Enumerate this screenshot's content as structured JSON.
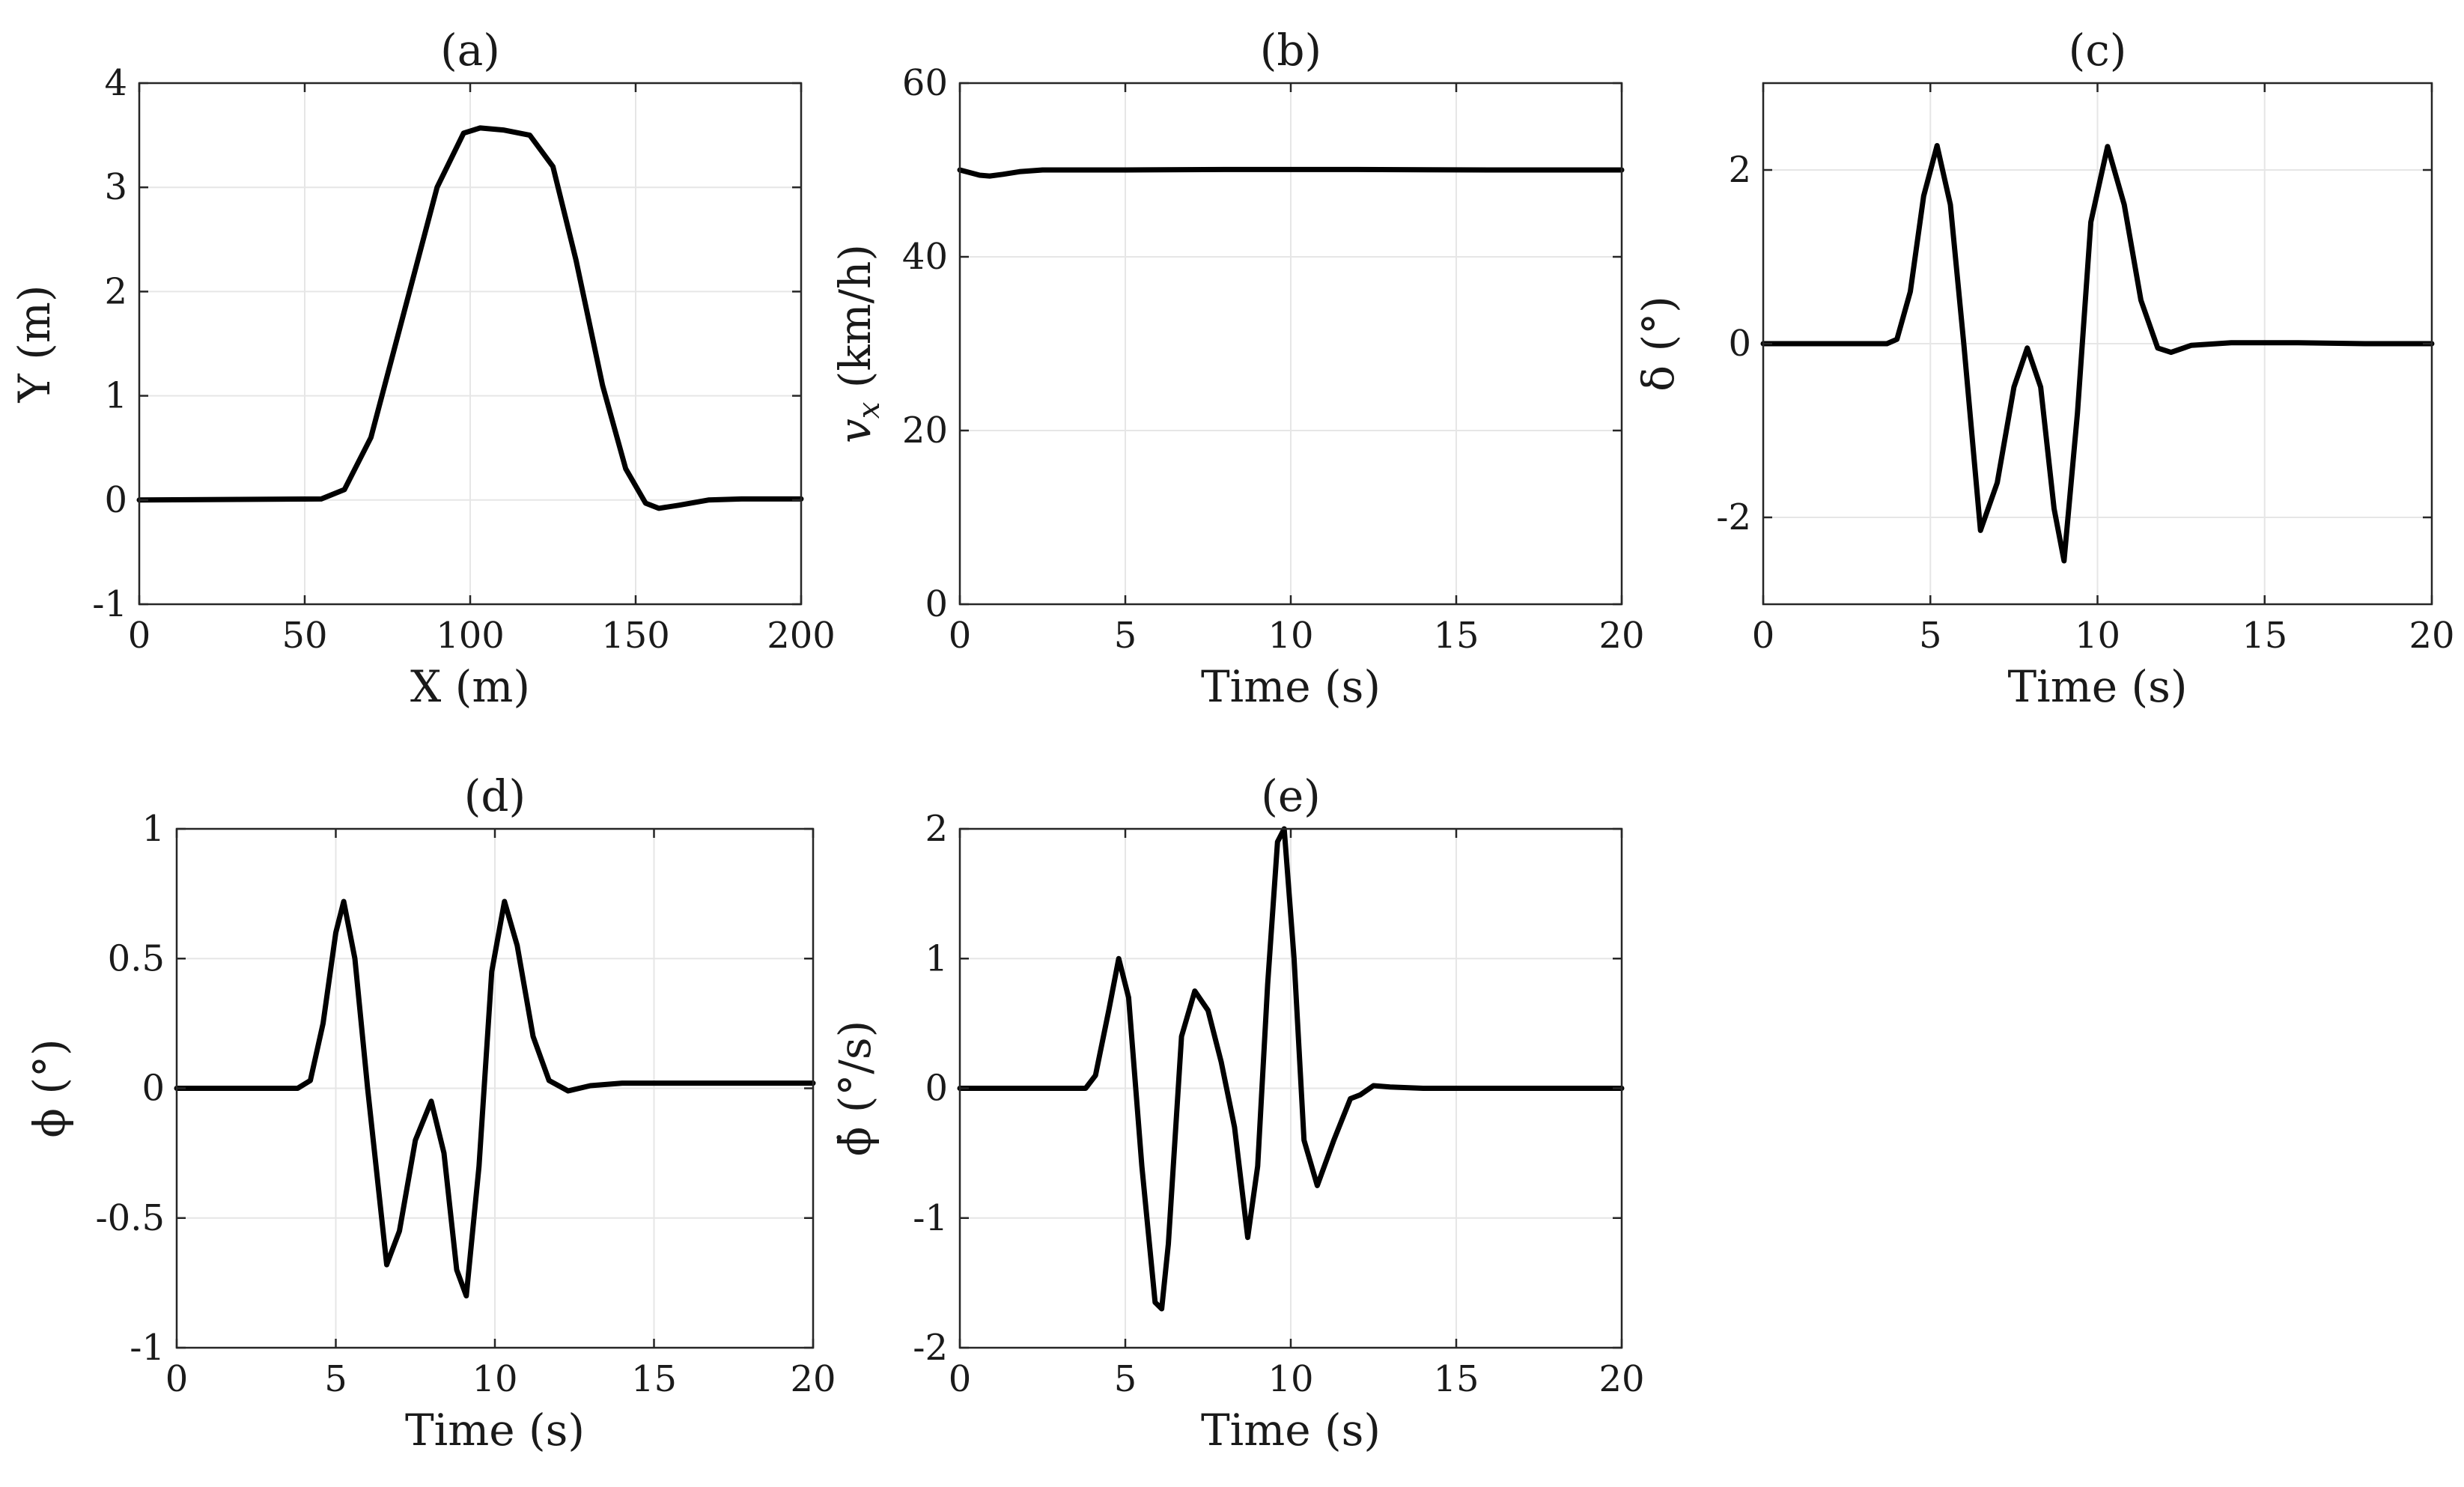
{
  "figure": {
    "background": "#ffffff",
    "line_color": "#000000",
    "grid_color": "#e6e6e6"
  },
  "chart_data": [
    {
      "type": "line",
      "title": "(a)",
      "xlabel": "X (m)",
      "ylabel": "Y (m)",
      "xlim": [
        0,
        200
      ],
      "ylim": [
        -1,
        4
      ],
      "xticks": [
        0,
        50,
        100,
        150,
        200
      ],
      "yticks": [
        -1,
        0,
        1,
        2,
        3,
        4
      ],
      "xtick_labels": [
        "0",
        "50",
        "100",
        "150",
        "200"
      ],
      "ytick_labels": [
        "-1",
        "0",
        "1",
        "2",
        "3",
        "4"
      ],
      "grid": true,
      "series": [
        {
          "name": "Y",
          "x": [
            0,
            55,
            62,
            70,
            80,
            90,
            98,
            103,
            110,
            118,
            125,
            132,
            140,
            147,
            153,
            157,
            163,
            172,
            182,
            200
          ],
          "y": [
            0,
            0.01,
            0.1,
            0.6,
            1.8,
            3.0,
            3.52,
            3.57,
            3.55,
            3.5,
            3.2,
            2.3,
            1.1,
            0.3,
            -0.03,
            -0.08,
            -0.05,
            0.0,
            0.01,
            0.01
          ]
        }
      ]
    },
    {
      "type": "line",
      "title": "(b)",
      "xlabel": "Time (s)",
      "ylabel": "v_x (km/h)",
      "ylabel_main": "v",
      "ylabel_sub": "x",
      "ylabel_unit": " (km/h)",
      "xlim": [
        0,
        20
      ],
      "ylim": [
        0,
        60
      ],
      "xticks": [
        0,
        5,
        10,
        15,
        20
      ],
      "yticks": [
        0,
        20,
        40,
        60
      ],
      "xtick_labels": [
        "0",
        "5",
        "10",
        "15",
        "20"
      ],
      "ytick_labels": [
        "0",
        "20",
        "40",
        "60"
      ],
      "grid": true,
      "series": [
        {
          "name": "v_x",
          "x": [
            0,
            0.3,
            0.6,
            0.9,
            1.3,
            1.8,
            2.5,
            3.5,
            5,
            8,
            12,
            16,
            20
          ],
          "y": [
            50,
            49.7,
            49.4,
            49.3,
            49.5,
            49.8,
            50,
            50,
            50,
            50.05,
            50.05,
            50,
            50
          ]
        }
      ]
    },
    {
      "type": "line",
      "title": "(c)",
      "xlabel": "Time (s)",
      "ylabel": "δ (°)",
      "xlim": [
        0,
        20
      ],
      "ylim": [
        -3,
        3
      ],
      "xticks": [
        0,
        5,
        10,
        15,
        20
      ],
      "yticks": [
        -2,
        0,
        2
      ],
      "xtick_labels": [
        "0",
        "5",
        "10",
        "15",
        "20"
      ],
      "ytick_labels": [
        "-2",
        "0",
        "2"
      ],
      "grid": true,
      "series": [
        {
          "name": "δ",
          "x": [
            0,
            3.7,
            4.0,
            4.4,
            4.8,
            5.2,
            5.6,
            6.0,
            6.5,
            7.0,
            7.5,
            7.9,
            8.3,
            8.7,
            9.0,
            9.4,
            9.8,
            10.3,
            10.8,
            11.3,
            11.8,
            12.2,
            12.8,
            14,
            16,
            18,
            20
          ],
          "y": [
            0,
            0,
            0.05,
            0.6,
            1.7,
            2.28,
            1.6,
            0.0,
            -2.15,
            -1.6,
            -0.5,
            -0.05,
            -0.5,
            -1.9,
            -2.5,
            -0.8,
            1.4,
            2.27,
            1.6,
            0.5,
            -0.05,
            -0.1,
            -0.02,
            0.01,
            0.01,
            0,
            0
          ]
        }
      ]
    },
    {
      "type": "line",
      "title": "(d)",
      "xlabel": "Time (s)",
      "ylabel": "ϕ (°)",
      "xlim": [
        0,
        20
      ],
      "ylim": [
        -1,
        1
      ],
      "xticks": [
        0,
        5,
        10,
        15,
        20
      ],
      "yticks": [
        -1,
        -0.5,
        0,
        0.5,
        1
      ],
      "xtick_labels": [
        "0",
        "5",
        "10",
        "15",
        "20"
      ],
      "ytick_labels": [
        "-1",
        "-0.5",
        "0",
        "0.5",
        "1"
      ],
      "grid": true,
      "series": [
        {
          "name": "ϕ",
          "x": [
            0,
            3.8,
            4.2,
            4.6,
            5.0,
            5.25,
            5.6,
            6.0,
            6.6,
            7.0,
            7.5,
            8.0,
            8.4,
            8.8,
            9.1,
            9.5,
            9.9,
            10.3,
            10.7,
            11.2,
            11.7,
            12.3,
            13,
            14,
            16,
            18,
            20
          ],
          "y": [
            0,
            0,
            0.03,
            0.25,
            0.6,
            0.72,
            0.5,
            0.0,
            -0.68,
            -0.55,
            -0.2,
            -0.05,
            -0.25,
            -0.7,
            -0.8,
            -0.3,
            0.45,
            0.72,
            0.55,
            0.2,
            0.03,
            -0.01,
            0.01,
            0.02,
            0.02,
            0.02,
            0.02
          ]
        }
      ]
    },
    {
      "type": "line",
      "title": "(e)",
      "xlabel": "Time (s)",
      "ylabel": "ϕ̇ (°/s)",
      "xlim": [
        0,
        20
      ],
      "ylim": [
        -2,
        2
      ],
      "xticks": [
        0,
        5,
        10,
        15,
        20
      ],
      "yticks": [
        -2,
        -1,
        0,
        1,
        2
      ],
      "xtick_labels": [
        "0",
        "5",
        "10",
        "15",
        "20"
      ],
      "ytick_labels": [
        "-2",
        "-1",
        "0",
        "1",
        "2"
      ],
      "grid": true,
      "series": [
        {
          "name": "ϕ̇",
          "x": [
            0,
            3.8,
            4.1,
            4.5,
            4.8,
            5.1,
            5.5,
            5.9,
            6.1,
            6.3,
            6.7,
            7.1,
            7.5,
            7.9,
            8.3,
            8.7,
            9.0,
            9.3,
            9.6,
            9.8,
            10.1,
            10.4,
            10.8,
            11.3,
            11.8,
            12.1,
            12.5,
            13,
            14,
            16,
            18,
            20
          ],
          "y": [
            0,
            0,
            0.1,
            0.6,
            1.0,
            0.7,
            -0.6,
            -1.65,
            -1.7,
            -1.2,
            0.4,
            0.75,
            0.6,
            0.2,
            -0.3,
            -1.15,
            -0.6,
            0.8,
            1.9,
            2.0,
            1.0,
            -0.4,
            -0.75,
            -0.4,
            -0.08,
            -0.05,
            0.02,
            0.01,
            0.0,
            0.0,
            0.0,
            0.0
          ]
        }
      ]
    }
  ]
}
